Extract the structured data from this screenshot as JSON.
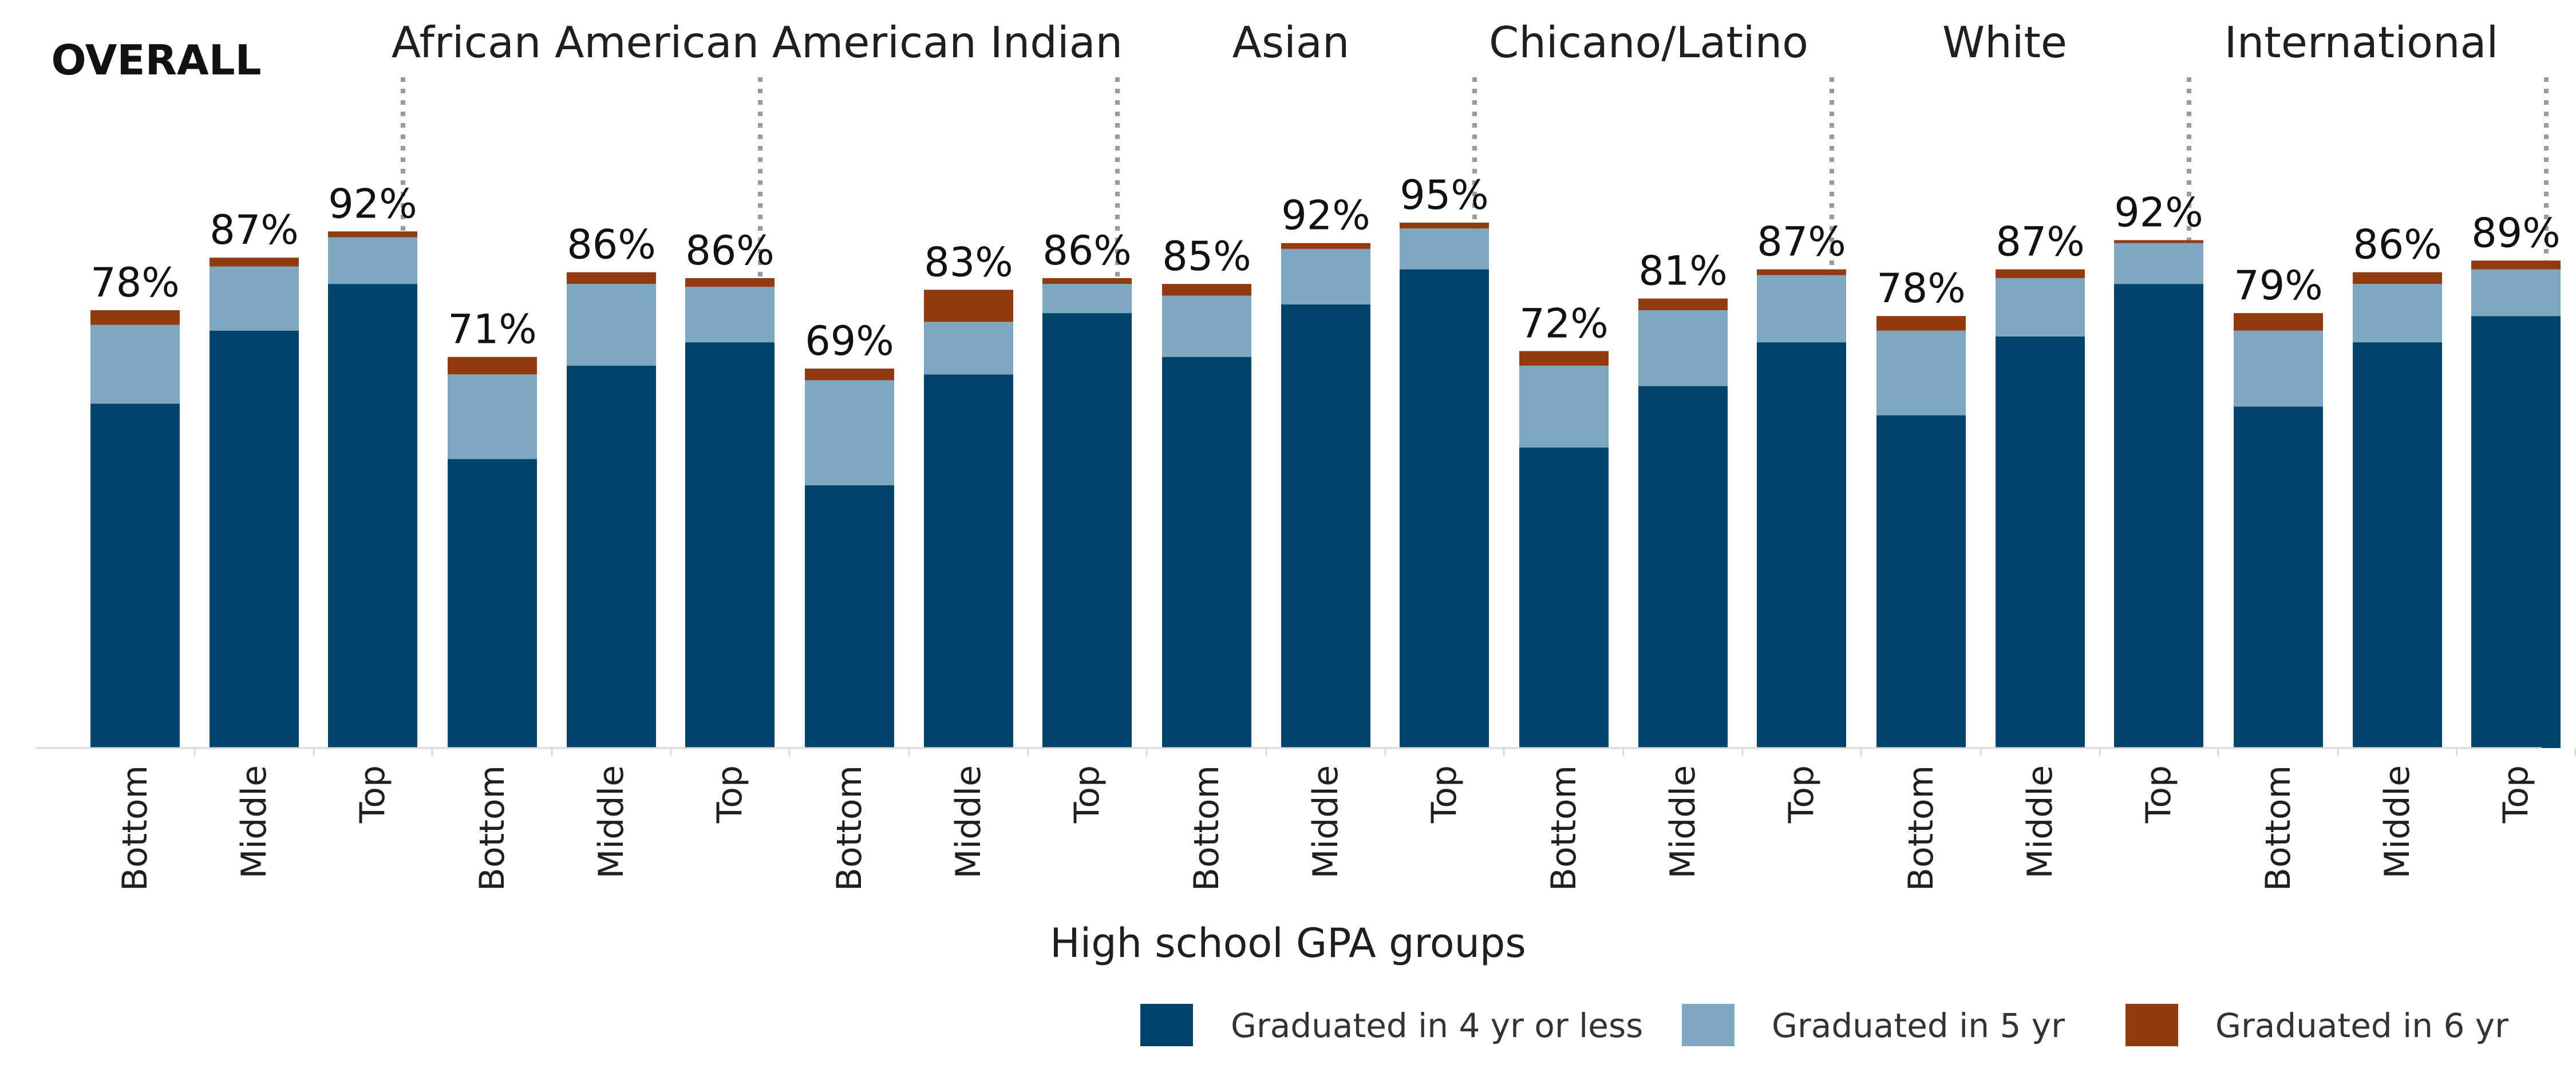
{
  "chart_data": {
    "type": "bar",
    "stacked": true,
    "xlabel": "High school GPA groups",
    "ylim": [
      0,
      100
    ],
    "grid": false,
    "legend_position": "bottom-right",
    "categories": [
      "Bottom",
      "Middle",
      "Top"
    ],
    "series": [
      {
        "name": "Graduated in 4 yr or less",
        "color": "#00446b"
      },
      {
        "name": "Graduated in 5 yr",
        "color": "#7ea8c1"
      },
      {
        "name": "Graduated in 6 yr",
        "color": "#933a11"
      }
    ],
    "groups": [
      {
        "name": "OVERALL",
        "bars": [
          {
            "category": "Bottom",
            "values": [
              59,
              13.5,
              2.5
            ],
            "total_label": "78%"
          },
          {
            "category": "Middle",
            "values": [
              71.5,
              11,
              1.5
            ],
            "total_label": "87%"
          },
          {
            "category": "Top",
            "values": [
              79.5,
              8,
              1
            ],
            "total_label": "92%"
          }
        ]
      },
      {
        "name": "African American",
        "bars": [
          {
            "category": "Bottom",
            "values": [
              49.5,
              14.5,
              3
            ],
            "total_label": "71%"
          },
          {
            "category": "Middle",
            "values": [
              65.5,
              14,
              2
            ],
            "total_label": "86%"
          },
          {
            "category": "Top",
            "values": [
              69.5,
              9.5,
              1.5
            ],
            "total_label": "86%"
          }
        ]
      },
      {
        "name": "American Indian",
        "bars": [
          {
            "category": "Bottom",
            "values": [
              45,
              18,
              2
            ],
            "total_label": "69%"
          },
          {
            "category": "Middle",
            "values": [
              64,
              9,
              5.5
            ],
            "total_label": "83%"
          },
          {
            "category": "Top",
            "values": [
              74.5,
              5,
              1
            ],
            "total_label": "86%"
          }
        ]
      },
      {
        "name": "Asian",
        "bars": [
          {
            "category": "Bottom",
            "values": [
              67,
              10.5,
              2
            ],
            "total_label": "85%"
          },
          {
            "category": "Middle",
            "values": [
              76,
              9.5,
              1
            ],
            "total_label": "92%"
          },
          {
            "category": "Top",
            "values": [
              82,
              7,
              1
            ],
            "total_label": "95%"
          }
        ]
      },
      {
        "name": "Chicano/Latino",
        "bars": [
          {
            "category": "Bottom",
            "values": [
              51.5,
              14,
              2.5
            ],
            "total_label": "72%"
          },
          {
            "category": "Middle",
            "values": [
              62,
              13,
              2
            ],
            "total_label": "81%"
          },
          {
            "category": "Top",
            "values": [
              69.5,
              11.5,
              1
            ],
            "total_label": "87%"
          }
        ]
      },
      {
        "name": "White",
        "bars": [
          {
            "category": "Bottom",
            "values": [
              57,
              14.5,
              2.5
            ],
            "total_label": "78%"
          },
          {
            "category": "Middle",
            "values": [
              70.5,
              10,
              1.5
            ],
            "total_label": "87%"
          },
          {
            "category": "Top",
            "values": [
              79.5,
              7,
              0.5
            ],
            "total_label": "92%"
          }
        ]
      },
      {
        "name": "International",
        "bars": [
          {
            "category": "Bottom",
            "values": [
              58.5,
              13,
              3
            ],
            "total_label": "79%"
          },
          {
            "category": "Middle",
            "values": [
              69.5,
              10,
              2
            ],
            "total_label": "86%"
          },
          {
            "category": "Top",
            "values": [
              74,
              8,
              1.5
            ],
            "total_label": "89%"
          }
        ]
      }
    ]
  }
}
